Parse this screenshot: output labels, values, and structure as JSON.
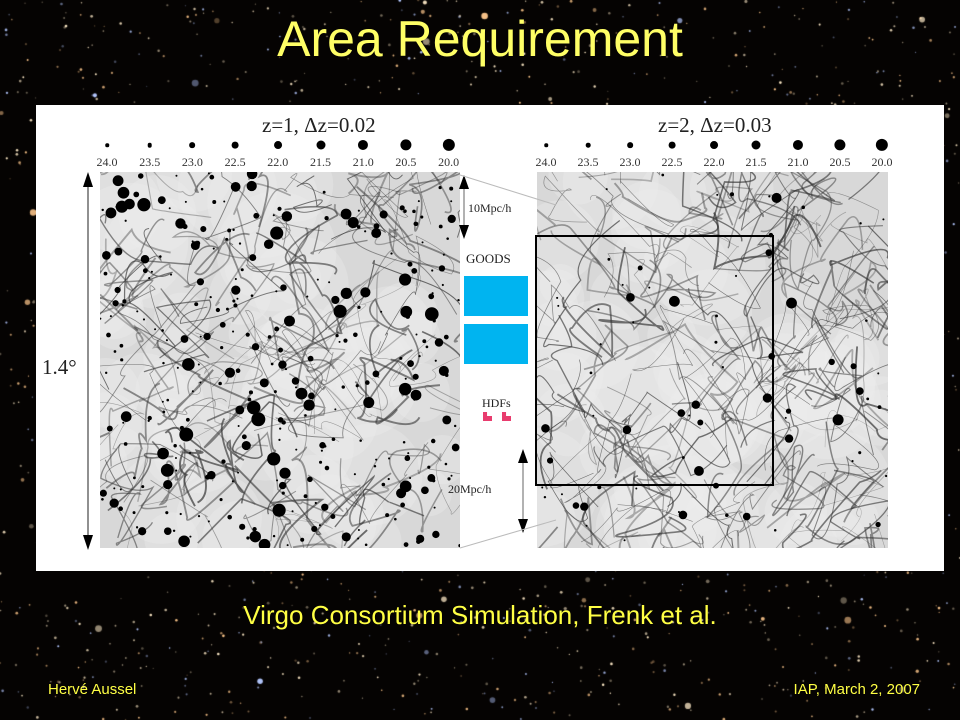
{
  "slide": {
    "title": "Area Requirement",
    "caption": "Virgo Consortium Simulation, Frenk et al.",
    "footer_left": "Hervé Aussel",
    "footer_right": "IAP, March 2, 2007"
  },
  "figure": {
    "left_panel": {
      "title": "z=1, Δz=0.02"
    },
    "right_panel": {
      "title": "z=2, Δz=0.03"
    },
    "magnitude_scale": [
      "24.0",
      "23.5",
      "23.0",
      "22.5",
      "22.0",
      "21.5",
      "21.0",
      "20.5",
      "20.0"
    ],
    "angular_size": "1.4°",
    "scale_top": "10Mpc/h",
    "scale_bottom": "20Mpc/h",
    "goods_label": "GOODS",
    "hdfs_label": "HDFs",
    "colors": {
      "goods": "#00b4f0",
      "hdfs": "#e83c6e",
      "text": "#ffff44"
    }
  }
}
